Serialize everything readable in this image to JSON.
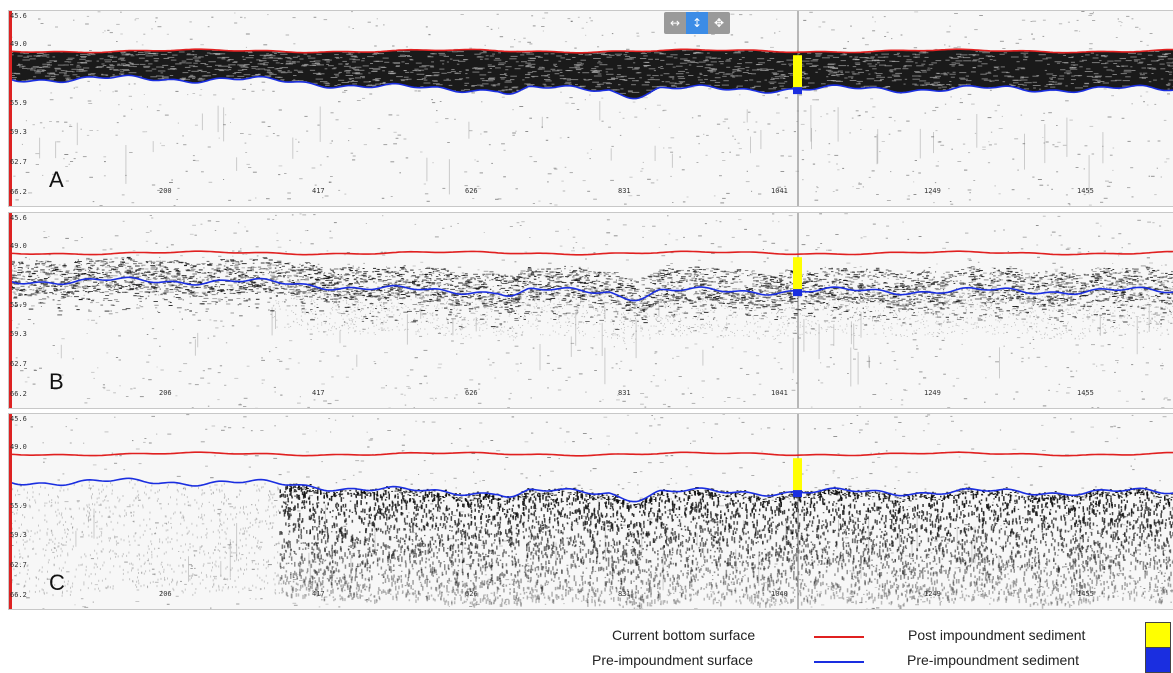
{
  "panels": [
    {
      "letter": "A",
      "style": "dense"
    },
    {
      "letter": "B",
      "style": "medium"
    },
    {
      "letter": "C",
      "style": "sparse"
    }
  ],
  "y_ticks": [
    "45.6",
    "49.0",
    "55.9",
    "59.3",
    "62.7",
    "66.2"
  ],
  "x_ticks_a": [
    "200",
    "417",
    "626",
    "831",
    "1041",
    "1249",
    "1455"
  ],
  "x_ticks_b": [
    "206",
    "417",
    "626",
    "831",
    "1041",
    "1249",
    "1455"
  ],
  "x_ticks_c": [
    "206",
    "417",
    "626",
    "831",
    "1040",
    "1249",
    "1455"
  ],
  "toolbar": {
    "pan_horizontal": "↔",
    "pan_vertical": "↕",
    "move": "✥"
  },
  "legend": {
    "current_bottom": "Current bottom surface",
    "pre_impoundment_surface": "Pre-impoundment surface",
    "post_sediment": "Post impoundment sediment",
    "pre_sediment": "Pre-impoundment sediment"
  },
  "colors": {
    "current_bottom_line": "#e02020",
    "pre_impoundment_line": "#1a2ee0",
    "post_sediment_fill": "#ffff00",
    "pre_sediment_fill": "#1a2ee0",
    "cursor": "#777777"
  }
}
